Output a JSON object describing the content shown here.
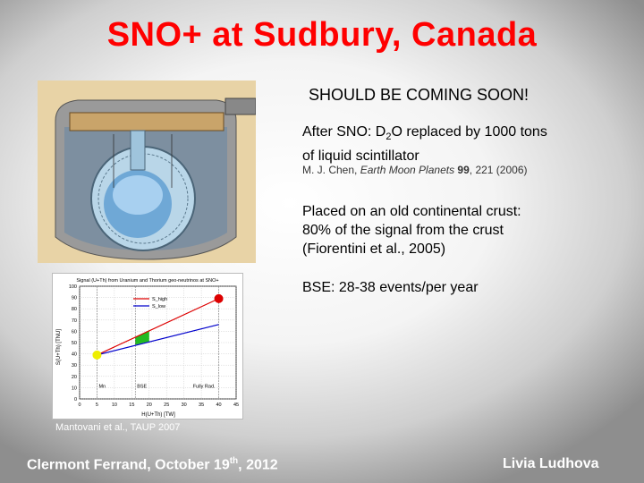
{
  "slide": {
    "title": "SNO+ at Sudbury, Canada",
    "coming_soon": "SHOULD BE COMING SOON!",
    "line1_a": "After SNO: D",
    "line1_sub": "2",
    "line1_b": "O replaced by 1000 tons",
    "line1_c": "of liquid scintillator",
    "ref_a": "M. J. Chen, ",
    "ref_journal": "Earth Moon Planets",
    "ref_vol": " 99",
    "ref_b": ", 221 (2006)",
    "line2_a": "Placed on an old continental crust:",
    "line2_b": "80% of the signal from the crust",
    "line2_c": "(Fiorentini et al., 2005)",
    "line3": "BSE: 28-38 events/per year",
    "caption": "Mantovani et al., TAUP 2007",
    "footer_left_a": "Clermont Ferrand, October 19",
    "footer_left_sup": "th",
    "footer_left_b": ", 2012",
    "footer_right": "Livia Ludhova"
  },
  "colors": {
    "title": "#ff0000",
    "high": "#dd0000",
    "low": "#0000cc",
    "bse_band": "#22bb22",
    "mn_point": "#eeee00"
  },
  "chart_data": {
    "type": "line",
    "title": "Signal (U+Th) from Uranium and Thorium geo-neutrinos at SNO+",
    "xlabel": "H(U+Th) [TW]",
    "ylabel": "S(U+Th) [TNU]",
    "xlim": [
      0,
      45
    ],
    "ylim": [
      0,
      100
    ],
    "xticks": [
      "0",
      "5",
      "10",
      "15",
      "20",
      "25",
      "30",
      "35",
      "40",
      "45"
    ],
    "yticks": [
      "0",
      "10",
      "20",
      "30",
      "40",
      "50",
      "60",
      "70",
      "80",
      "90",
      "100"
    ],
    "series": [
      {
        "name": "S_high",
        "x": [
          5,
          40
        ],
        "y": [
          39,
          89
        ]
      },
      {
        "name": "S_low",
        "x": [
          5,
          40
        ],
        "y": [
          39,
          66
        ]
      }
    ],
    "annotations": [
      "Mn",
      "BSE",
      "Fully Rad."
    ],
    "grid": true,
    "legend": "top-left"
  }
}
